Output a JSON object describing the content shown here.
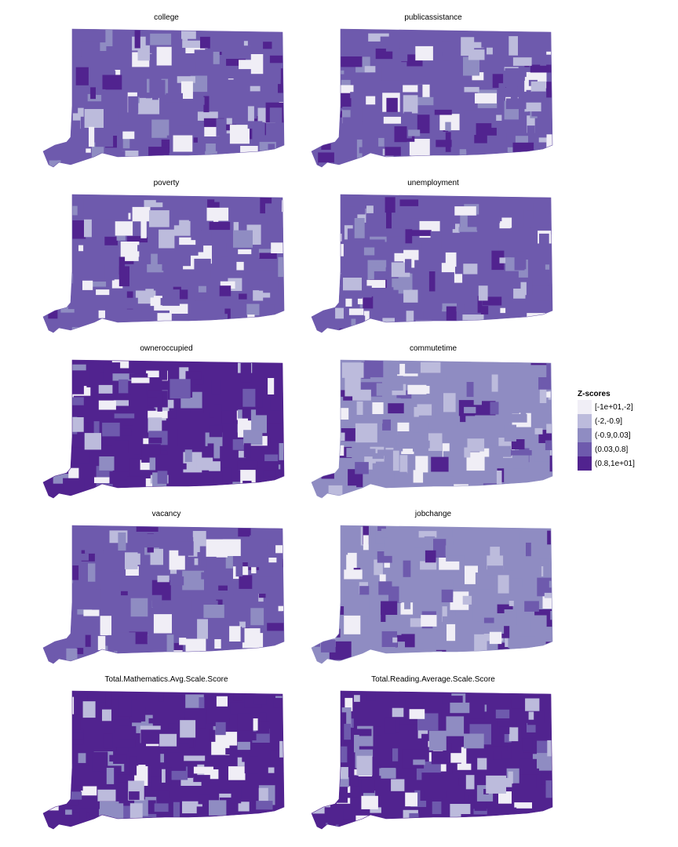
{
  "legend": {
    "title": "Z-scores",
    "classes": [
      {
        "label": "[-1e+01,-2]",
        "color": "#f0eef6"
      },
      {
        "label": "(-2,-0.9]",
        "color": "#bcbbdc"
      },
      {
        "label": "(-0.9,0.03]",
        "color": "#8f8cc2"
      },
      {
        "label": "(0.03,0.8]",
        "color": "#6e5aad"
      },
      {
        "label": "(0.8,1e+01]",
        "color": "#51238f"
      }
    ]
  },
  "panels": [
    {
      "title": "college",
      "dominant_class": 3
    },
    {
      "title": "publicassistance",
      "dominant_class": 3
    },
    {
      "title": "poverty",
      "dominant_class": 3
    },
    {
      "title": "unemployment",
      "dominant_class": 3
    },
    {
      "title": "owneroccupied",
      "dominant_class": 4
    },
    {
      "title": "commutetime",
      "dominant_class": 2
    },
    {
      "title": "vacancy",
      "dominant_class": 3
    },
    {
      "title": "jobchange",
      "dominant_class": 2
    },
    {
      "title": "Total.Mathematics.Avg.Scale.Score",
      "dominant_class": 4
    },
    {
      "title": "Total.Reading.Average.Scale.Score",
      "dominant_class": 4
    }
  ]
}
